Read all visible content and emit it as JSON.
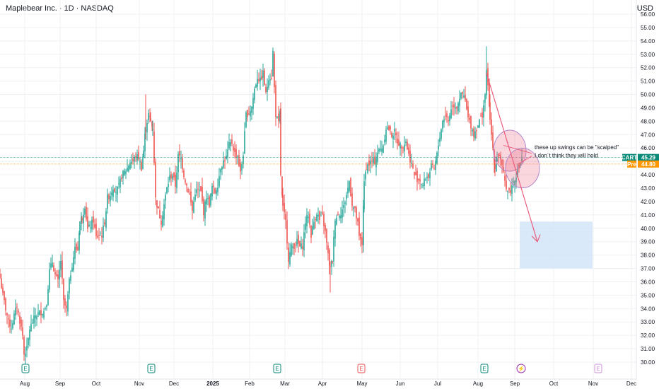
{
  "header": {
    "title": "Maplebear Inc. · 1D · NASDAQ",
    "currency": "USD"
  },
  "tags": {
    "last_symbol": "CART",
    "last_value": "45.29",
    "last_color": "#0a8a78",
    "pre_symbol": "Pre",
    "pre_value": "44.80",
    "pre_color": "#ff9800"
  },
  "colors": {
    "up": "#26a69a",
    "down": "#ef5350",
    "grid": "#eef0f3",
    "drawing": "#ea5d7c",
    "box": "#cfe3f9"
  },
  "annotation": {
    "line1": "these up swings can be \"scalped\"",
    "line2": "I don´t think they will hold"
  },
  "events": [
    {
      "label": "E",
      "icon": "earnings-icon",
      "month": "Aug",
      "kind": "green"
    },
    {
      "label": "E",
      "icon": "earnings-icon",
      "month": "Nov",
      "kind": "green"
    },
    {
      "label": "E",
      "icon": "earnings-icon",
      "month": "Feb",
      "kind": "green"
    },
    {
      "label": "E",
      "icon": "earnings-icon",
      "month": "May",
      "kind": "red"
    },
    {
      "label": "E",
      "icon": "earnings-icon",
      "month": "Aug",
      "kind": "green"
    },
    {
      "label": "⚡",
      "icon": "lightning-icon",
      "month": "Sep",
      "kind": "purple"
    },
    {
      "label": "E",
      "icon": "earnings-icon",
      "month": "Nov",
      "kind": "purple-outline"
    }
  ],
  "chart_data": {
    "type": "candlestick",
    "title": "Maplebear Inc. · 1D · NASDAQ",
    "ylim": [
      30,
      56
    ],
    "y_ticks": [
      "30.00",
      "31.00",
      "32.00",
      "33.00",
      "34.00",
      "35.00",
      "36.00",
      "37.00",
      "38.00",
      "39.00",
      "40.00",
      "41.00",
      "42.00",
      "43.00",
      "44.00",
      "45.00",
      "46.00",
      "47.00",
      "48.00",
      "49.00",
      "50.00",
      "51.00",
      "52.00",
      "53.00",
      "54.00",
      "55.00",
      "56.00"
    ],
    "x_ticks": [
      "Aug",
      "Sep",
      "Oct",
      "Nov",
      "Dec",
      "2025",
      "Feb",
      "Mar",
      "Apr",
      "May",
      "Jun",
      "Jul",
      "Aug",
      "Sep",
      "Oct",
      "Nov",
      "Dec"
    ],
    "grid": true,
    "last_price": 45.29,
    "premarket_price": 44.8,
    "anchors": [
      [
        0,
        36.3
      ],
      [
        4,
        35.0
      ],
      [
        8,
        34.0
      ],
      [
        12,
        33.0
      ],
      [
        16,
        32.6
      ],
      [
        20,
        33.5
      ],
      [
        24,
        34.2
      ],
      [
        28,
        33.1
      ],
      [
        32,
        32.0
      ],
      [
        34,
        30.6
      ],
      [
        38,
        31.0
      ],
      [
        42,
        32.5
      ],
      [
        46,
        33.0
      ],
      [
        50,
        33.5
      ],
      [
        56,
        33.7
      ],
      [
        62,
        33.8
      ],
      [
        66,
        34.5
      ],
      [
        70,
        36.8
      ],
      [
        74,
        37.5
      ],
      [
        78,
        36.5
      ],
      [
        82,
        36.0
      ],
      [
        86,
        37.6
      ],
      [
        90,
        34.5
      ],
      [
        94,
        33.9
      ],
      [
        98,
        36.0
      ],
      [
        102,
        37.3
      ],
      [
        106,
        38.5
      ],
      [
        110,
        38.4
      ],
      [
        113,
        40.5
      ],
      [
        116,
        40.8
      ],
      [
        120,
        41.7
      ],
      [
        124,
        39.9
      ],
      [
        128,
        40.2
      ],
      [
        132,
        40.6
      ],
      [
        136,
        39.3
      ],
      [
        140,
        39.5
      ],
      [
        144,
        39.5
      ],
      [
        148,
        40.5
      ],
      [
        152,
        42.3
      ],
      [
        156,
        42.5
      ],
      [
        160,
        43.1
      ],
      [
        164,
        42.8
      ],
      [
        168,
        43.1
      ],
      [
        172,
        43.9
      ],
      [
        176,
        44.2
      ],
      [
        180,
        44.5
      ],
      [
        184,
        45.0
      ],
      [
        188,
        45.0
      ],
      [
        192,
        45.4
      ],
      [
        196,
        45.3
      ],
      [
        200,
        44.5
      ],
      [
        203,
        45.8
      ],
      [
        206,
        47.5
      ],
      [
        210,
        48.5
      ],
      [
        213,
        48.0
      ],
      [
        216,
        47.5
      ],
      [
        218,
        45.0
      ],
      [
        220,
        42.2
      ],
      [
        224,
        41.3
      ],
      [
        228,
        40.5
      ],
      [
        232,
        41.8
      ],
      [
        236,
        43.0
      ],
      [
        240,
        43.8
      ],
      [
        244,
        44.0
      ],
      [
        248,
        43.2
      ],
      [
        252,
        45.4
      ],
      [
        256,
        45.2
      ],
      [
        260,
        44.0
      ],
      [
        264,
        43.2
      ],
      [
        268,
        42.5
      ],
      [
        272,
        41.3
      ],
      [
        276,
        42.7
      ],
      [
        280,
        42.8
      ],
      [
        284,
        42.7
      ],
      [
        288,
        41.2
      ],
      [
        292,
        42.4
      ],
      [
        296,
        41.8
      ],
      [
        300,
        43.1
      ],
      [
        304,
        42.7
      ],
      [
        308,
        43.3
      ],
      [
        312,
        44.6
      ],
      [
        316,
        45.0
      ],
      [
        320,
        45.3
      ],
      [
        324,
        46.2
      ],
      [
        328,
        46.4
      ],
      [
        332,
        45.6
      ],
      [
        336,
        45.4
      ],
      [
        340,
        44.1
      ],
      [
        344,
        45.6
      ],
      [
        348,
        48.5
      ],
      [
        352,
        48.6
      ],
      [
        356,
        49.1
      ],
      [
        360,
        50.4
      ],
      [
        364,
        51.3
      ],
      [
        368,
        51.0
      ],
      [
        372,
        51.6
      ],
      [
        376,
        50.0
      ],
      [
        380,
        51.3
      ],
      [
        384,
        51.3
      ],
      [
        386,
        53.2
      ],
      [
        388,
        50.5
      ],
      [
        390,
        48.5
      ],
      [
        394,
        47.8
      ],
      [
        396,
        48.6
      ],
      [
        397,
        44.0
      ],
      [
        400,
        41.5
      ],
      [
        404,
        40.5
      ],
      [
        408,
        37.7
      ],
      [
        412,
        38.6
      ],
      [
        416,
        38.7
      ],
      [
        420,
        39.0
      ],
      [
        424,
        38.6
      ],
      [
        428,
        38.7
      ],
      [
        432,
        40.5
      ],
      [
        436,
        41.0
      ],
      [
        440,
        39.5
      ],
      [
        444,
        40.5
      ],
      [
        448,
        41.2
      ],
      [
        452,
        40.6
      ],
      [
        456,
        40.9
      ],
      [
        460,
        39.7
      ],
      [
        464,
        38.0
      ],
      [
        467,
        37.0
      ],
      [
        470,
        37.6
      ],
      [
        474,
        40.8
      ],
      [
        478,
        41.0
      ],
      [
        482,
        41.2
      ],
      [
        486,
        41.6
      ],
      [
        490,
        42.5
      ],
      [
        494,
        43.5
      ],
      [
        498,
        41.8
      ],
      [
        502,
        41.3
      ],
      [
        506,
        40.3
      ],
      [
        508,
        39.3
      ],
      [
        512,
        38.8
      ],
      [
        515,
        43.3
      ],
      [
        518,
        44.6
      ],
      [
        522,
        44.8
      ],
      [
        526,
        45.0
      ],
      [
        530,
        45.0
      ],
      [
        534,
        45.7
      ],
      [
        538,
        45.9
      ],
      [
        542,
        46.2
      ],
      [
        546,
        47.5
      ],
      [
        550,
        47.4
      ],
      [
        554,
        47.0
      ],
      [
        558,
        47.2
      ],
      [
        562,
        46.5
      ],
      [
        566,
        46.2
      ],
      [
        570,
        46.2
      ],
      [
        574,
        46.5
      ],
      [
        578,
        45.5
      ],
      [
        582,
        44.8
      ],
      [
        586,
        44.0
      ],
      [
        590,
        43.7
      ],
      [
        594,
        43.6
      ],
      [
        598,
        43.2
      ],
      [
        602,
        43.8
      ],
      [
        606,
        43.9
      ],
      [
        610,
        44.6
      ],
      [
        614,
        44.4
      ],
      [
        618,
        45.5
      ],
      [
        622,
        46.9
      ],
      [
        626,
        48.0
      ],
      [
        630,
        48.5
      ],
      [
        634,
        48.0
      ],
      [
        638,
        49.0
      ],
      [
        642,
        49.2
      ],
      [
        646,
        49.1
      ],
      [
        650,
        49.8
      ],
      [
        654,
        50.0
      ],
      [
        658,
        49.5
      ],
      [
        662,
        48.2
      ],
      [
        666,
        47.7
      ],
      [
        670,
        47.0
      ],
      [
        674,
        47.5
      ],
      [
        678,
        48.0
      ],
      [
        682,
        48.5
      ],
      [
        686,
        50.0
      ],
      [
        688,
        51.6
      ],
      [
        690,
        50.9
      ],
      [
        693,
        48.0
      ],
      [
        697,
        46.0
      ],
      [
        700,
        44.5
      ],
      [
        703,
        45.2
      ],
      [
        706,
        45.5
      ],
      [
        710,
        44.5
      ],
      [
        714,
        43.5
      ],
      [
        718,
        42.8
      ],
      [
        722,
        42.8
      ],
      [
        726,
        43.5
      ],
      [
        730,
        44.0
      ],
      [
        734,
        44.5
      ],
      [
        738,
        45.3
      ]
    ],
    "highs": {
      "206": 50.0,
      "386": 53.5,
      "688": 53.6
    },
    "lows": {
      "34": 30.1,
      "467": 35.2,
      "394": 47.5
    },
    "annotation": {
      "line1": "these up swings can be \"scalped\"",
      "line2": "I don´t think they will hold"
    }
  }
}
